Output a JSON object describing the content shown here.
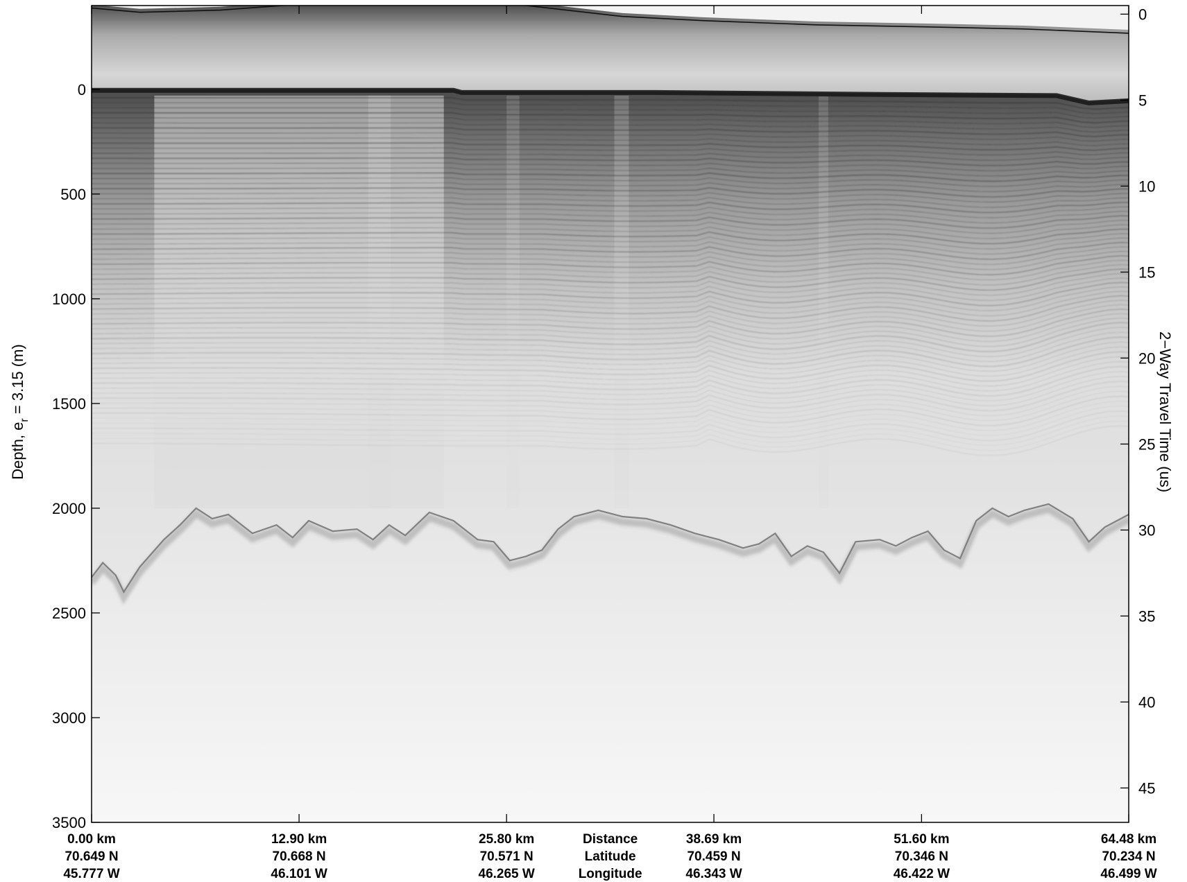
{
  "chart_data": {
    "type": "radargram",
    "left_axis": {
      "label_prefix": "Depth, e",
      "label_sub": "r",
      "label_suffix": " = 3.15 (m)",
      "ticks": [
        0,
        500,
        1000,
        1500,
        2000,
        2500,
        3000,
        3500
      ],
      "tick_labels": [
        "0",
        "500",
        "1000",
        "1500",
        "2000",
        "2500",
        "3000",
        "3500"
      ],
      "range": [
        -400,
        3500
      ]
    },
    "right_axis": {
      "label": "2−Way Travel Time (us)",
      "ticks": [
        0,
        5,
        10,
        15,
        20,
        25,
        30,
        35,
        40,
        45
      ],
      "tick_labels": [
        "0",
        "5",
        "10",
        "15",
        "20",
        "25",
        "30",
        "35",
        "40",
        "45"
      ],
      "range": [
        -0.5,
        47
      ]
    },
    "x_axis": {
      "range_km": [
        0,
        64.48
      ],
      "ticks": [
        {
          "distance_km": 0.0,
          "distance": "0.00 km",
          "latitude": "70.649 N",
          "longitude": "45.777 W"
        },
        {
          "distance_km": 12.9,
          "distance": "12.90 km",
          "latitude": "70.668 N",
          "longitude": "46.101 W"
        },
        {
          "distance_km": 25.8,
          "distance": "25.80 km",
          "latitude": "70.571 N",
          "longitude": "46.265 W"
        },
        {
          "distance_km": 38.69,
          "distance": "38.69 km",
          "latitude": "70.459 N",
          "longitude": "46.343 W"
        },
        {
          "distance_km": 51.6,
          "distance": "51.60 km",
          "latitude": "70.346 N",
          "longitude": "46.422 W"
        },
        {
          "distance_km": 64.48,
          "distance": "64.48 km",
          "latitude": "70.234 N",
          "longitude": "46.499 W"
        }
      ],
      "row_titles": {
        "distance": "Distance",
        "latitude": "Latitude",
        "longitude": "Longitude"
      }
    },
    "surface_depth_m": [
      [
        0,
        0
      ],
      [
        5,
        0
      ],
      [
        10,
        0
      ],
      [
        20,
        0
      ],
      [
        22.5,
        0
      ],
      [
        23,
        10
      ],
      [
        35,
        10
      ],
      [
        50,
        20
      ],
      [
        60,
        25
      ],
      [
        62,
        60
      ],
      [
        64.48,
        50
      ]
    ],
    "air_reflection_depth_m": [
      [
        0,
        -400
      ],
      [
        3,
        -380
      ],
      [
        8,
        -390
      ],
      [
        15,
        -430
      ],
      [
        22,
        -470
      ],
      [
        25,
        -430
      ],
      [
        33,
        -360
      ],
      [
        38,
        -340
      ],
      [
        45,
        -320
      ],
      [
        52,
        -310
      ],
      [
        58,
        -300
      ],
      [
        64.48,
        -280
      ]
    ],
    "bed_depth_m": [
      [
        0,
        2330
      ],
      [
        0.7,
        2260
      ],
      [
        1.5,
        2320
      ],
      [
        2.0,
        2400
      ],
      [
        3.0,
        2280
      ],
      [
        4.5,
        2150
      ],
      [
        5.5,
        2080
      ],
      [
        6.5,
        2000
      ],
      [
        7.5,
        2050
      ],
      [
        8.5,
        2030
      ],
      [
        10,
        2120
      ],
      [
        11.5,
        2080
      ],
      [
        12.5,
        2140
      ],
      [
        13.5,
        2060
      ],
      [
        15,
        2110
      ],
      [
        16.5,
        2100
      ],
      [
        17.5,
        2150
      ],
      [
        18.5,
        2080
      ],
      [
        19.5,
        2130
      ],
      [
        21,
        2020
      ],
      [
        22.5,
        2060
      ],
      [
        24,
        2150
      ],
      [
        25,
        2160
      ],
      [
        26,
        2250
      ],
      [
        27,
        2230
      ],
      [
        28,
        2200
      ],
      [
        29,
        2100
      ],
      [
        30,
        2040
      ],
      [
        31.5,
        2010
      ],
      [
        33,
        2040
      ],
      [
        34.5,
        2050
      ],
      [
        36,
        2080
      ],
      [
        37.5,
        2120
      ],
      [
        39,
        2150
      ],
      [
        40.5,
        2190
      ],
      [
        41.5,
        2170
      ],
      [
        42.5,
        2120
      ],
      [
        43.5,
        2230
      ],
      [
        44.5,
        2180
      ],
      [
        45.5,
        2210
      ],
      [
        46.5,
        2310
      ],
      [
        47.5,
        2160
      ],
      [
        49,
        2150
      ],
      [
        50,
        2180
      ],
      [
        51,
        2140
      ],
      [
        52,
        2110
      ],
      [
        53,
        2200
      ],
      [
        54,
        2240
      ],
      [
        55,
        2060
      ],
      [
        56,
        2000
      ],
      [
        57,
        2040
      ],
      [
        58,
        2010
      ],
      [
        59.5,
        1980
      ],
      [
        61,
        2050
      ],
      [
        62,
        2160
      ],
      [
        63,
        2090
      ],
      [
        64.48,
        2030
      ]
    ]
  }
}
